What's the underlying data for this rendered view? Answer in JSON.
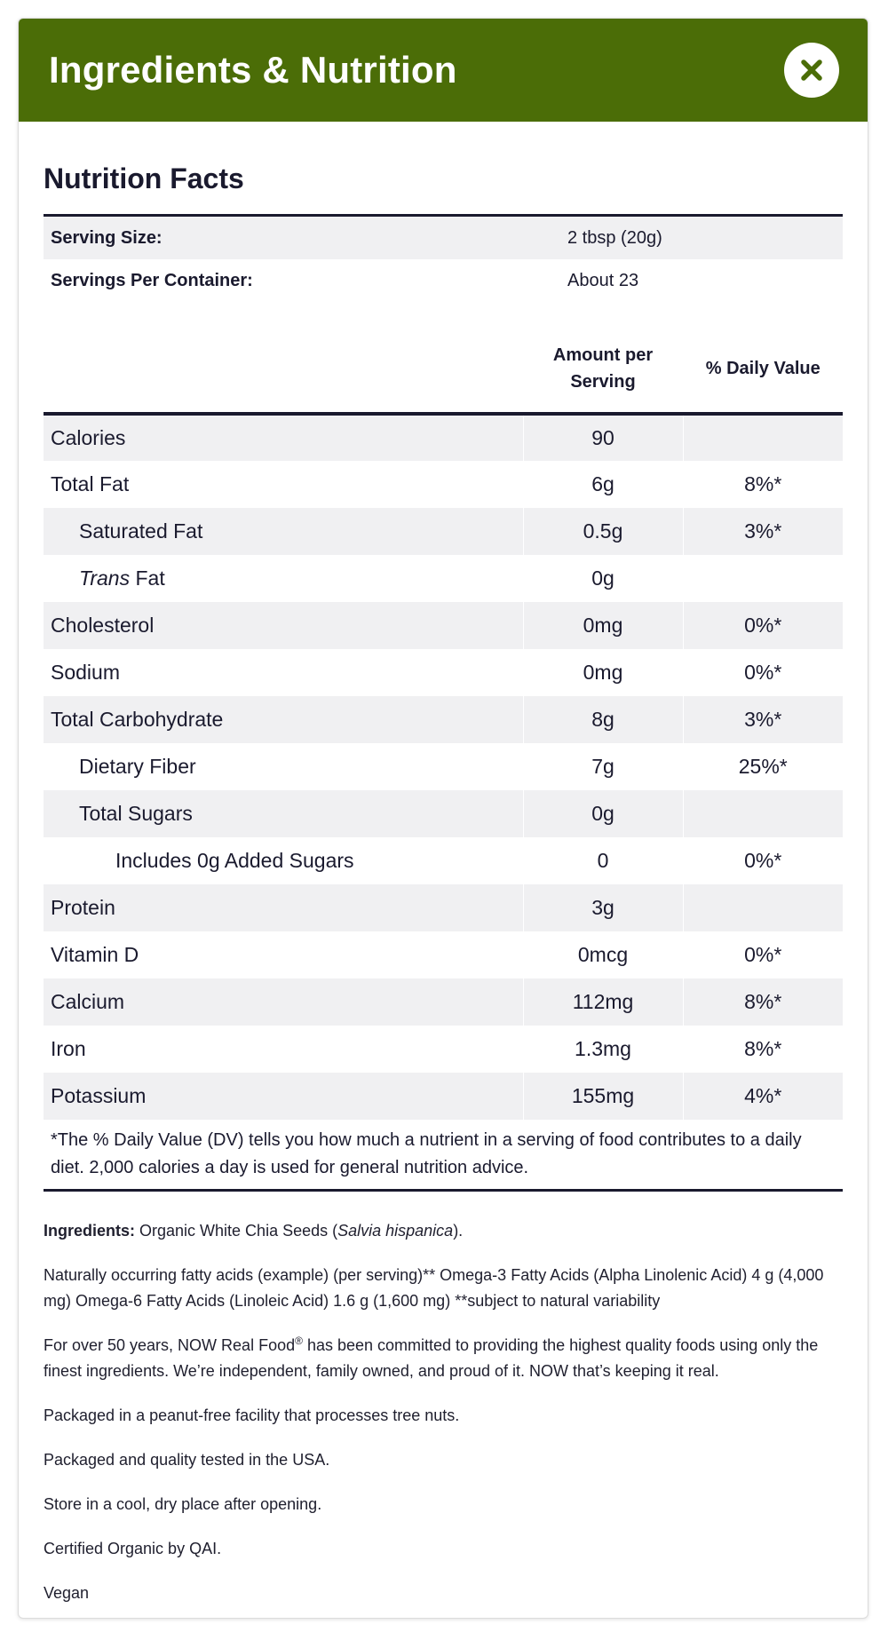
{
  "modal": {
    "title": "Ingredients & Nutrition",
    "close_icon": "close-icon",
    "header_color": "#4b6d07"
  },
  "nutrition": {
    "title": "Nutrition Facts",
    "serving_size_label": "Serving Size:",
    "serving_size_value": "2 tbsp (20g)",
    "servings_per_container_label": "Servings Per Container:",
    "servings_per_container_value": "About 23",
    "headers": {
      "amount": "Amount per Serving",
      "dv": "% Daily Value"
    },
    "rows": [
      {
        "name": "Calories",
        "amount": "90",
        "dv": ""
      },
      {
        "name": "Total Fat",
        "amount": "6g",
        "dv": "8%*"
      },
      {
        "name": "Saturated Fat",
        "amount": "0.5g",
        "dv": "3%*"
      },
      {
        "name_italic": "Trans",
        "name": " Fat",
        "amount": "0g",
        "dv": ""
      },
      {
        "name": "Cholesterol",
        "amount": "0mg",
        "dv": "0%*"
      },
      {
        "name": "Sodium",
        "amount": "0mg",
        "dv": "0%*"
      },
      {
        "name": "Total Carbohydrate",
        "amount": "8g",
        "dv": "3%*"
      },
      {
        "name": "Dietary Fiber",
        "amount": "7g",
        "dv": "25%*"
      },
      {
        "name": "Total Sugars",
        "amount": "0g",
        "dv": ""
      },
      {
        "name": "Includes 0g Added Sugars",
        "amount": "0",
        "dv": "0%*"
      },
      {
        "name": "Protein",
        "amount": "3g",
        "dv": ""
      },
      {
        "name": "Vitamin D",
        "amount": "0mcg",
        "dv": "0%*"
      },
      {
        "name": "Calcium",
        "amount": "112mg",
        "dv": "8%*"
      },
      {
        "name": "Iron",
        "amount": "1.3mg",
        "dv": "8%*"
      },
      {
        "name": "Potassium",
        "amount": "155mg",
        "dv": "4%*"
      }
    ],
    "footnote": "*The % Daily Value (DV) tells you how much a nutrient in a serving of food contributes to a daily diet. 2,000 calories a day is used for general nutrition advice."
  },
  "info": {
    "ingredients_label": "Ingredients:",
    "ingredients_text_pre": " Organic White Chia Seeds (",
    "ingredients_text_italic": "Salvia hispanica",
    "ingredients_text_post": ").",
    "fatty_acids": "Naturally occurring fatty acids (example) (per serving)** Omega-3 Fatty Acids (Alpha Linolenic Acid) 4 g (4,000 mg) Omega-6 Fatty Acids (Linoleic Acid) 1.6 g (1,600 mg) **subject to natural variability",
    "brand_pre": "For over 50 years, NOW Real Food",
    "brand_reg": "®",
    "brand_post": " has been committed to providing the highest quality foods using only the finest ingredients. We’re independent, family owned, and proud of it. NOW that’s keeping it real.",
    "allergen": "Packaged in a peanut-free facility that processes tree nuts.",
    "origin": "Packaged and quality tested in the USA.",
    "storage": "Store in a cool, dry place after opening.",
    "certified": "Certified Organic by QAI.",
    "vegan": "Vegan"
  }
}
